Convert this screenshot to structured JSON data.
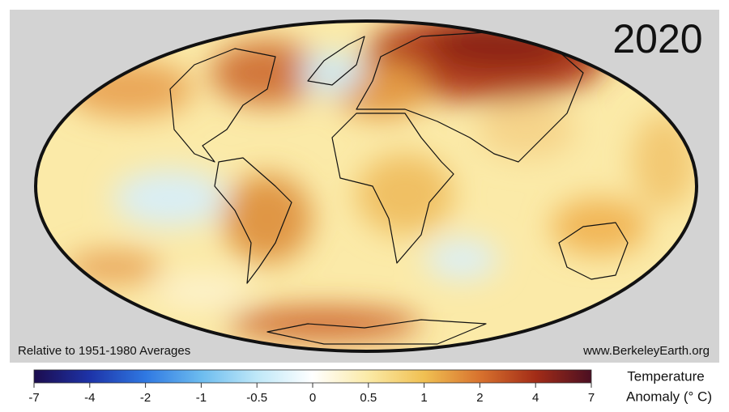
{
  "map": {
    "year": "2020",
    "note_left": "Relative to 1951-1980 Averages",
    "note_right": "www.BerkeleyEarth.org"
  },
  "colorbar": {
    "ticks": [
      -7,
      -4,
      -2,
      -1,
      -0.5,
      0,
      0.5,
      1,
      2,
      4,
      7
    ],
    "colors": [
      "#1c0c4e",
      "#1d33a8",
      "#2f78e2",
      "#6cbcef",
      "#bfe8f8",
      "#ffffff",
      "#fbeaa6",
      "#f0c052",
      "#d8722e",
      "#a32c17",
      "#4b0f22"
    ],
    "title": [
      "Temperature",
      "Anomaly (° C)"
    ]
  }
}
